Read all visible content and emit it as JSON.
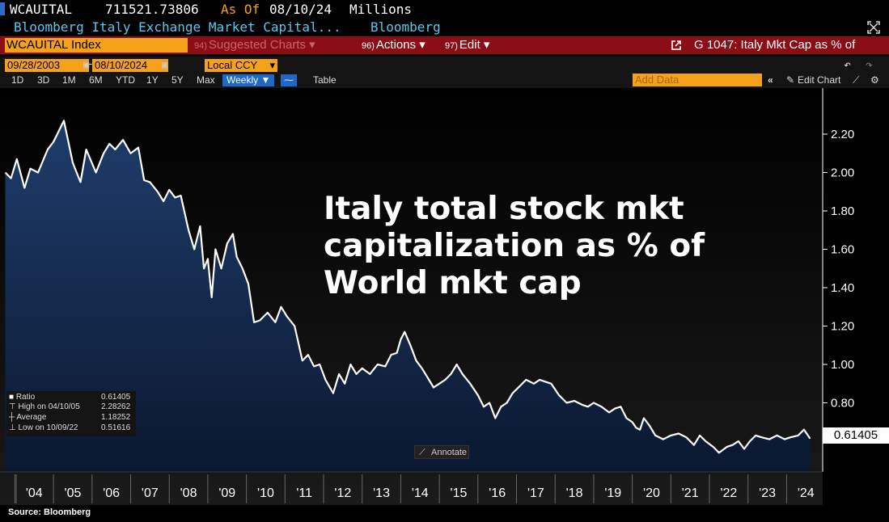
{
  "header": {
    "ticker": "WCAUITAL",
    "value": "711521.73806",
    "as_of_label": "As Of",
    "as_of_date": "08/10/24",
    "units": "Millions",
    "description": "Bloomberg Italy Exchange Market Capital...",
    "source_name": "Bloomberg"
  },
  "toolbar": {
    "security": "WCAUITAL Index",
    "suggested_num": "94)",
    "suggested_label": "Suggested Charts",
    "actions_num": "96)",
    "actions_label": "Actions",
    "edit_num": "97)",
    "edit_label": "Edit",
    "chart_title": "G 1047: Italy Mkt Cap as % of"
  },
  "controls": {
    "start_date": "09/28/2003",
    "end_date": "08/10/2024",
    "currency": "Local CCY",
    "add_data_placeholder": "Add Data",
    "edit_chart": "Edit Chart"
  },
  "ranges": [
    "1D",
    "3D",
    "1M",
    "6M",
    "YTD",
    "1Y",
    "5Y",
    "Max"
  ],
  "frequency": "Weekly",
  "table_label": "Table",
  "legend": {
    "series_label": "Ratio",
    "series_value": "0.61405",
    "high_label": "High on 04/10/05",
    "high_value": "2.28262",
    "avg_label": "Average",
    "avg_value": "1.18252",
    "low_label": "Low on 10/09/22",
    "low_value": "0.51616"
  },
  "annotate_label": "Annotate",
  "overlay_text": {
    "line1": "Italy total stock mkt",
    "line2": "capitalization as % of",
    "line3": "World mkt cap"
  },
  "source": "Source: Bloomberg",
  "colors": {
    "accent": "#f6a11a",
    "bar": "#8b0d16",
    "line": "#ffffff",
    "area_top": "#1f3d6b",
    "area_bottom": "#0a1830"
  },
  "chart_data": {
    "type": "area",
    "title": "Italy total stock mkt capitalization as % of World mkt cap",
    "ylim": [
      0.44,
      2.44
    ],
    "yticks": [
      0.8,
      1.0,
      1.2,
      1.4,
      1.6,
      1.8,
      2.0,
      2.2
    ],
    "ytick_labels": [
      "0.80",
      "1.00",
      "1.20",
      "1.40",
      "1.60",
      "1.80",
      "2.00",
      "2.20"
    ],
    "xlim": [
      2003.74,
      2024.62
    ],
    "xtick_labels": [
      "'04",
      "'05",
      "'06",
      "'07",
      "'08",
      "'09",
      "'10",
      "'11",
      "'12",
      "'13",
      "'14",
      "'15",
      "'16",
      "'17",
      "'18",
      "'19",
      "'20",
      "'21",
      "'22",
      "'23",
      "'24"
    ],
    "last_value": "0.61405",
    "x": [
      2003.75,
      2003.9,
      2004.05,
      2004.25,
      2004.4,
      2004.6,
      2004.85,
      2005.0,
      2005.27,
      2005.5,
      2005.7,
      2005.85,
      2006.1,
      2006.3,
      2006.45,
      2006.6,
      2006.8,
      2007.0,
      2007.2,
      2007.35,
      2007.5,
      2007.7,
      2007.85,
      2008.0,
      2008.15,
      2008.3,
      2008.5,
      2008.65,
      2008.8,
      2008.9,
      2009.0,
      2009.1,
      2009.2,
      2009.35,
      2009.5,
      2009.65,
      2009.75,
      2009.9,
      2010.05,
      2010.2,
      2010.35,
      2010.55,
      2010.75,
      2010.9,
      2011.05,
      2011.25,
      2011.45,
      2011.6,
      2011.75,
      2011.9,
      2012.05,
      2012.25,
      2012.4,
      2012.55,
      2012.7,
      2012.85,
      2013.0,
      2013.2,
      2013.4,
      2013.6,
      2013.75,
      2013.9,
      2014.0,
      2014.1,
      2014.25,
      2014.4,
      2014.55,
      2014.7,
      2014.85,
      2015.0,
      2015.15,
      2015.3,
      2015.45,
      2015.6,
      2015.8,
      2016.0,
      2016.15,
      2016.3,
      2016.45,
      2016.6,
      2016.75,
      2016.9,
      2017.05,
      2017.25,
      2017.45,
      2017.6,
      2017.75,
      2017.9,
      2018.1,
      2018.3,
      2018.5,
      2018.7,
      2018.85,
      2019.0,
      2019.2,
      2019.4,
      2019.55,
      2019.7,
      2019.85,
      2020.0,
      2020.1,
      2020.2,
      2020.3,
      2020.45,
      2020.6,
      2020.8,
      2021.0,
      2021.2,
      2021.4,
      2021.6,
      2021.75,
      2021.9,
      2022.1,
      2022.25,
      2022.45,
      2022.6,
      2022.75,
      2022.9,
      2023.05,
      2023.2,
      2023.35,
      2023.55,
      2023.75,
      2023.95,
      2024.1,
      2024.3,
      2024.45,
      2024.61
    ],
    "y": [
      2.0,
      1.97,
      2.07,
      1.92,
      2.02,
      2.0,
      2.12,
      2.16,
      2.27,
      2.05,
      1.95,
      2.12,
      2.0,
      2.1,
      2.15,
      2.12,
      2.17,
      2.1,
      2.13,
      1.96,
      1.95,
      1.9,
      1.85,
      1.91,
      1.87,
      1.88,
      1.7,
      1.6,
      1.72,
      1.5,
      1.55,
      1.35,
      1.6,
      1.5,
      1.63,
      1.68,
      1.56,
      1.5,
      1.42,
      1.22,
      1.23,
      1.27,
      1.22,
      1.3,
      1.25,
      1.2,
      1.02,
      1.05,
      0.99,
      1.0,
      0.92,
      0.85,
      0.95,
      0.9,
      1.0,
      0.95,
      0.98,
      0.95,
      1.0,
      0.99,
      1.05,
      1.06,
      1.13,
      1.17,
      1.1,
      1.02,
      0.98,
      0.93,
      0.88,
      0.9,
      0.92,
      0.95,
      1.0,
      0.95,
      0.9,
      0.84,
      0.78,
      0.8,
      0.72,
      0.78,
      0.8,
      0.85,
      0.88,
      0.92,
      0.9,
      0.92,
      0.91,
      0.9,
      0.84,
      0.8,
      0.81,
      0.79,
      0.78,
      0.8,
      0.78,
      0.75,
      0.77,
      0.78,
      0.72,
      0.7,
      0.67,
      0.66,
      0.72,
      0.68,
      0.63,
      0.61,
      0.63,
      0.64,
      0.62,
      0.58,
      0.63,
      0.6,
      0.57,
      0.54,
      0.57,
      0.58,
      0.6,
      0.56,
      0.6,
      0.63,
      0.62,
      0.61,
      0.63,
      0.61,
      0.62,
      0.63,
      0.66,
      0.61405
    ]
  }
}
